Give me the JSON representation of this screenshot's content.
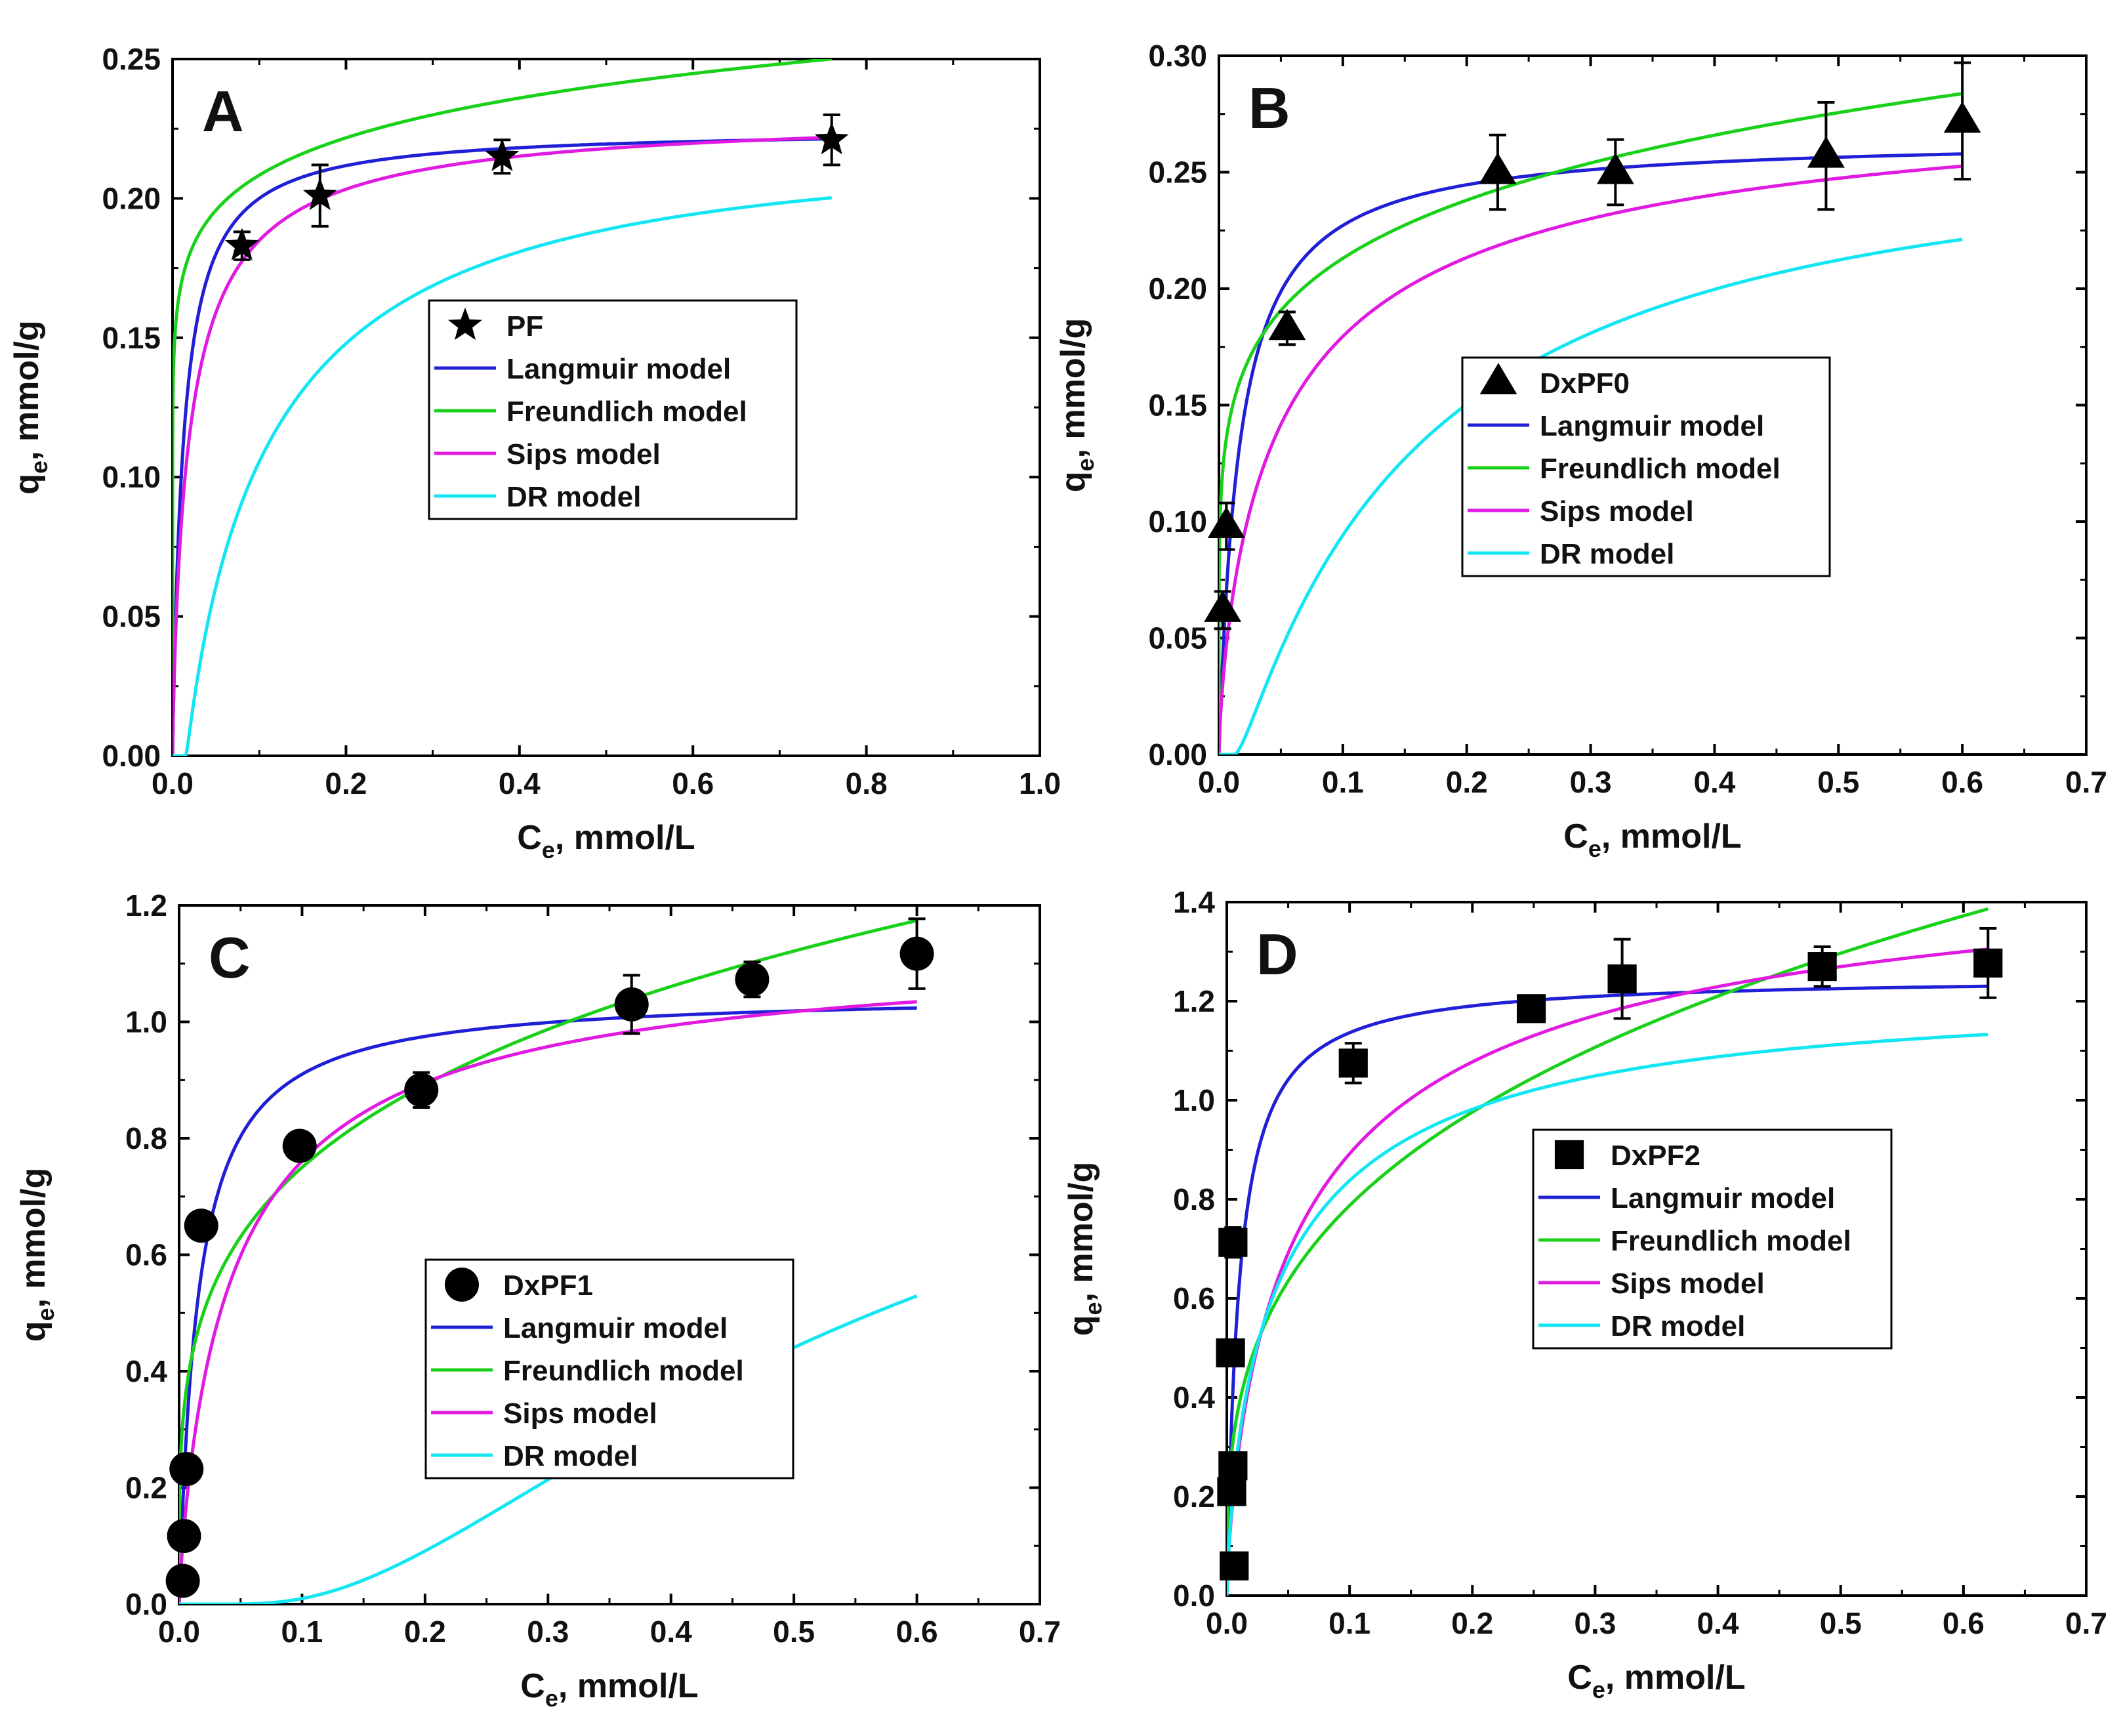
{
  "figure": {
    "panels": [
      "A",
      "B",
      "C",
      "D"
    ]
  },
  "colors": {
    "Langmuir model": "#1f1fd6",
    "Freundlich model": "#1ad11a",
    "Sips model": "#e01ae0",
    "DR model": "#12e6f2",
    "data": "#000000"
  },
  "chart_data": [
    {
      "panel_label": "A",
      "type": "scatter",
      "xlabel": "C",
      "xlabel_sub": "e",
      "xlabel_rest": ", mmol/L",
      "ylabel": "q",
      "ylabel_sub": "e",
      "ylabel_rest": ", mmol/g",
      "xlim": [
        0,
        1.0
      ],
      "ylim": [
        0,
        0.25
      ],
      "xticks": [
        "0.0",
        "0.2",
        "0.4",
        "0.6",
        "0.8",
        "1.0"
      ],
      "yticks": [
        "0.00",
        "0.05",
        "0.10",
        "0.15",
        "0.20",
        "0.25"
      ],
      "legend": [
        "PF",
        "Langmuir model",
        "Freundlich model",
        "Sips model",
        "DR model"
      ],
      "legend_position": "center-right",
      "marker": "star",
      "data": {
        "name": "PF",
        "x": [
          0.08,
          0.17,
          0.38,
          0.76
        ],
        "y": [
          0.183,
          0.201,
          0.215,
          0.221
        ],
        "err": [
          0.005,
          0.011,
          0.006,
          0.009
        ]
      },
      "models": {
        "langmuir": {
          "qm": 0.225,
          "K": 80,
          "xmax": 0.76
        },
        "freundlich": {
          "K": 0.2563,
          "n": 0.09,
          "xmax": 0.76
        },
        "sips": {
          "qm": 0.232,
          "K": 50,
          "n": 0.85,
          "xmax": 0.76
        },
        "dr": {
          "qm": 0.217,
          "E": 3.0,
          "x0": 0.015,
          "xmax": 0.76
        }
      }
    },
    {
      "panel_label": "B",
      "type": "scatter",
      "xlabel": "C",
      "xlabel_sub": "e",
      "xlabel_rest": ", mmol/L",
      "ylabel": "q",
      "ylabel_sub": "e",
      "ylabel_rest": ", mmol/g",
      "xlim": [
        0,
        0.7
      ],
      "ylim": [
        0,
        0.3
      ],
      "xticks": [
        "0.0",
        "0.1",
        "0.2",
        "0.3",
        "0.4",
        "0.5",
        "0.6",
        "0.7"
      ],
      "yticks": [
        "0.00",
        "0.05",
        "0.10",
        "0.15",
        "0.20",
        "0.25",
        "0.30"
      ],
      "legend": [
        "DxPF0",
        "Langmuir model",
        "Freundlich model",
        "Sips model",
        "DR model"
      ],
      "legend_position": "center-right",
      "marker": "triangle",
      "data": {
        "name": "DxPF0",
        "x": [
          0.003,
          0.006,
          0.055,
          0.225,
          0.32,
          0.49,
          0.6
        ],
        "y": [
          0.062,
          0.098,
          0.183,
          0.25,
          0.25,
          0.257,
          0.272
        ],
        "err": [
          0.008,
          0.01,
          0.007,
          0.016,
          0.014,
          0.023,
          0.025
        ]
      },
      "models": {
        "langmuir": {
          "qm": 0.265,
          "K": 60,
          "xmax": 0.6
        },
        "freundlich": {
          "K": 0.3079,
          "n": 0.16,
          "xmax": 0.6
        },
        "sips": {
          "qm": 0.295,
          "K": 18,
          "n": 0.75,
          "xmax": 0.6
        },
        "dr": {
          "qm": 0.259,
          "E": 2.5,
          "x0": 0.012,
          "xmax": 0.6
        }
      }
    },
    {
      "panel_label": "C",
      "type": "scatter",
      "xlabel": "C",
      "xlabel_sub": "e",
      "xlabel_rest": ", mmol/L",
      "ylabel": "q",
      "ylabel_sub": "e",
      "ylabel_rest": ", mmol/g",
      "xlim": [
        0,
        0.7
      ],
      "ylim": [
        0,
        1.2
      ],
      "xticks": [
        "0.0",
        "0.1",
        "0.2",
        "0.3",
        "0.4",
        "0.5",
        "0.6",
        "0.7"
      ],
      "yticks": [
        "0.0",
        "0.2",
        "0.4",
        "0.6",
        "0.8",
        "1.0",
        "1.2"
      ],
      "legend": [
        "DxPF1",
        "Langmuir model",
        "Freundlich model",
        "Sips model",
        "DR model"
      ],
      "legend_position": "center-right",
      "marker": "circle",
      "data": {
        "name": "DxPF1",
        "x": [
          0.003,
          0.004,
          0.006,
          0.018,
          0.098,
          0.197,
          0.368,
          0.466,
          0.6
        ],
        "y": [
          0.04,
          0.117,
          0.232,
          0.65,
          0.787,
          0.883,
          1.03,
          1.073,
          1.117
        ],
        "err": [
          0,
          0,
          0,
          0,
          0.017,
          0.03,
          0.05,
          0.03,
          0.06
        ]
      },
      "models": {
        "langmuir": {
          "qm": 1.05,
          "K": 65,
          "xmax": 0.6
        },
        "freundlich": {
          "K": 1.3338,
          "n": 0.25,
          "xmax": 0.6
        },
        "sips": {
          "qm": 1.15,
          "K": 22,
          "n": 0.85,
          "xmax": 0.6
        },
        "dr": {
          "qm": 1.063,
          "E": 1.2,
          "x0": 0.02,
          "xmax": 0.6
        }
      }
    },
    {
      "panel_label": "D",
      "type": "scatter",
      "xlabel": "C",
      "xlabel_sub": "e",
      "xlabel_rest": ", mmol/L",
      "ylabel": "q",
      "ylabel_sub": "e",
      "ylabel_rest": ", mmol/g",
      "xlim": [
        0,
        0.7
      ],
      "ylim": [
        0,
        1.4
      ],
      "xticks": [
        "0.0",
        "0.1",
        "0.2",
        "0.3",
        "0.4",
        "0.5",
        "0.6",
        "0.7"
      ],
      "yticks": [
        "0.0",
        "0.2",
        "0.4",
        "0.6",
        "0.8",
        "1.0",
        "1.2",
        "1.4"
      ],
      "legend": [
        "DxPF2",
        "Langmuir model",
        "Freundlich model",
        "Sips model",
        "DR model"
      ],
      "legend_position": "center-right",
      "marker": "square",
      "data": {
        "name": "DxPF2",
        "x": [
          0.006,
          0.004,
          0.005,
          0.003,
          0.005,
          0.103,
          0.248,
          0.322,
          0.485,
          0.62
        ],
        "y": [
          0.06,
          0.21,
          0.262,
          0.49,
          0.713,
          1.075,
          1.185,
          1.245,
          1.27,
          1.277
        ],
        "err": [
          0,
          0,
          0,
          0,
          0.03,
          0.04,
          0.02,
          0.08,
          0.04,
          0.07
        ]
      },
      "models": {
        "langmuir": {
          "qm": 1.25,
          "K": 100,
          "xmax": 0.62
        },
        "freundlich": {
          "K": 1.6077,
          "n": 0.31,
          "xmax": 0.62
        },
        "sips": {
          "qm": 1.55,
          "K": 15,
          "n": 0.75,
          "xmax": 0.62
        },
        "dr": {
          "qm": 1.2,
          "E": 4.0,
          "x0": 0.0,
          "xmax": 0.62
        }
      }
    }
  ]
}
